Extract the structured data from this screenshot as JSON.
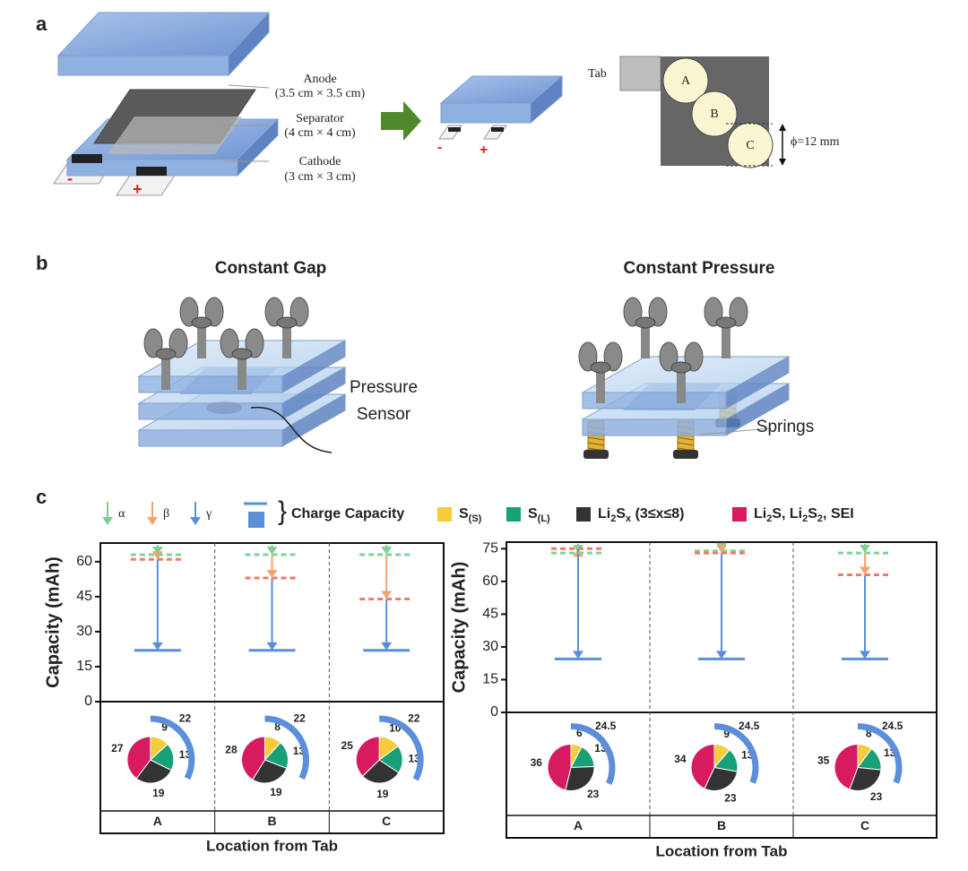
{
  "panel_a": {
    "label": "a",
    "anode": "Anode",
    "anode_size": "(3.5 cm × 3.5 cm)",
    "separator": "Separator",
    "separator_size": "(4 cm × 4 cm)",
    "cathode": "Cathode",
    "cathode_size": "(3 cm × 3 cm)",
    "minus": "-",
    "plus": "+",
    "tab": "Tab",
    "locations": [
      "A",
      "B",
      "C"
    ],
    "diameter": "ϕ=12 mm"
  },
  "panel_b": {
    "label": "b",
    "gap_title": "Constant Gap",
    "pressure_title": "Constant Pressure",
    "sensor_label": [
      "Pressure",
      "Sensor"
    ],
    "springs_label": "Springs"
  },
  "panel_c": {
    "label": "c",
    "legend": {
      "alpha": "α",
      "beta": "β",
      "gamma": "γ",
      "alpha_color": "#7fcf95",
      "beta_color": "#f5a36c",
      "gamma_color": "#5b8fd9",
      "charge": "Charge Capacity",
      "items": [
        {
          "parts": [
            "S",
            "(S)"
          ],
          "color": "#f5cc3a"
        },
        {
          "parts": [
            "S",
            "(L)"
          ],
          "color": "#18a077"
        },
        {
          "parts": [
            "Li",
            "2",
            "S",
            "x",
            " (3≤x≤8)"
          ],
          "color": "#333333"
        },
        {
          "parts": [
            "Li",
            "2",
            "S, Li",
            "2",
            "S",
            "2",
            ", SEI"
          ],
          "color": "#d81b60"
        }
      ]
    }
  },
  "chart_data": [
    {
      "type": "levels",
      "ylabel": "Capacity (mAh)",
      "xlabel": "Location from Tab",
      "categories": [
        "A",
        "B",
        "C"
      ],
      "ylim": [
        0,
        68
      ],
      "yticks": [
        0,
        15,
        30,
        45,
        60
      ],
      "series": [
        {
          "color": "#7ed39a",
          "values": [
            63,
            63,
            63
          ]
        },
        {
          "color": "#f07a6a",
          "values": [
            61,
            53,
            44
          ]
        },
        {
          "color": "#5b8fd9",
          "values": [
            22,
            22,
            22
          ]
        }
      ],
      "pies": [
        {
          "values": [
            9,
            13,
            19,
            27
          ],
          "arc": 22
        },
        {
          "values": [
            8,
            13,
            19,
            28
          ],
          "arc": 22
        },
        {
          "values": [
            10,
            13,
            19,
            25
          ],
          "arc": 22
        }
      ]
    },
    {
      "type": "levels",
      "ylabel": "Capacity (mAh)",
      "xlabel": "Location from Tab",
      "categories": [
        "A",
        "B",
        "C"
      ],
      "ylim": [
        0,
        78
      ],
      "yticks": [
        0,
        15,
        30,
        45,
        60,
        75
      ],
      "series": [
        {
          "color": "#7ed39a",
          "values": [
            73,
            74,
            73
          ]
        },
        {
          "color": "#f07a6a",
          "values": [
            75,
            73,
            63
          ]
        },
        {
          "color": "#5b8fd9",
          "values": [
            24.5,
            24.5,
            24.5
          ]
        }
      ],
      "pies": [
        {
          "values": [
            6,
            13,
            23,
            36
          ],
          "arc": 24.5
        },
        {
          "values": [
            9,
            13,
            23,
            34
          ],
          "arc": 24.5
        },
        {
          "values": [
            8,
            13,
            23,
            35
          ],
          "arc": 24.5
        }
      ]
    }
  ]
}
